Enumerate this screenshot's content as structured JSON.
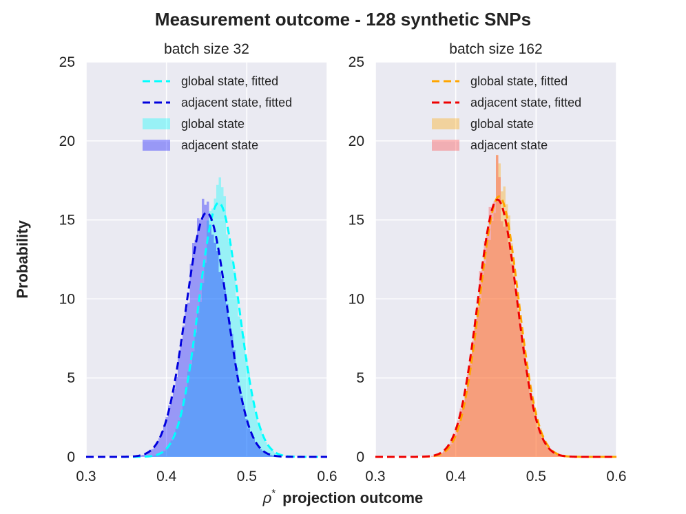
{
  "colors": {
    "background": "#eaeaf2",
    "grid": "#ffffff",
    "left_global": "#00ffff",
    "left_adjacent": "#0000ff",
    "left_global_fit": "#00ffff",
    "left_adjacent_fit": "#0000dd",
    "right_global": "#ffa500",
    "right_adjacent": "#ff4040",
    "right_global_fit": "#ffa500",
    "right_adjacent_fit": "#ee0000"
  },
  "chart_data": {
    "type": "histogram",
    "title": "Measurement outcome - 128 synthetic SNPs",
    "xlabel_symbol": "ρ",
    "xlabel_sup": "*",
    "xlabel_text": "projection outcome",
    "ylabel": "Probability",
    "xlim": [
      0.3,
      0.6
    ],
    "ylim": [
      0,
      25
    ],
    "xticks": [
      "0.3",
      "0.4",
      "0.5",
      "0.6"
    ],
    "yticks": [
      "0",
      "5",
      "10",
      "15",
      "20",
      "25"
    ],
    "bin_range": [
      0.36,
      0.54
    ],
    "bin_count": 60,
    "panels": [
      {
        "title": "batch size 32",
        "legend": [
          "global state, fitted",
          "adjacent state, fitted",
          "global state",
          "adjacent state"
        ],
        "series": [
          {
            "name": "global state",
            "color_key": "left_global",
            "mean": 0.465,
            "sd": 0.0248,
            "peak_bump": 0.9
          },
          {
            "name": "adjacent state",
            "color_key": "left_adjacent",
            "mean": 0.45,
            "sd": 0.0258,
            "peak_bump": 0.3
          }
        ],
        "fits": [
          {
            "name": "global state, fitted",
            "color_key": "left_global_fit",
            "mean": 0.465,
            "sd": 0.0248
          },
          {
            "name": "adjacent state, fitted",
            "color_key": "left_adjacent_fit",
            "mean": 0.45,
            "sd": 0.0258
          }
        ]
      },
      {
        "title": "batch size 162",
        "legend": [
          "global state, fitted",
          "adjacent state, fitted",
          "global state",
          "adjacent state"
        ],
        "series": [
          {
            "name": "global state",
            "color_key": "right_global",
            "mean": 0.454,
            "sd": 0.0242,
            "peak_bump": 1.5
          },
          {
            "name": "adjacent state",
            "color_key": "right_adjacent",
            "mean": 0.452,
            "sd": 0.0245,
            "peak_bump": 2.5
          }
        ],
        "fits": [
          {
            "name": "global state, fitted",
            "color_key": "right_global_fit",
            "mean": 0.454,
            "sd": 0.0242
          },
          {
            "name": "adjacent state, fitted",
            "color_key": "right_adjacent_fit",
            "mean": 0.452,
            "sd": 0.0245
          }
        ]
      }
    ]
  }
}
